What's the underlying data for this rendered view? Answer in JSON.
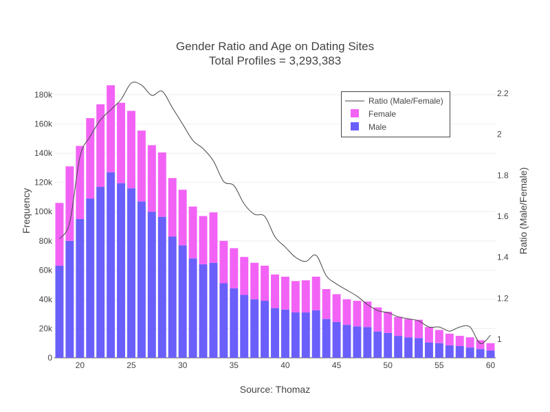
{
  "chart_data": {
    "type": "bar",
    "title": "Gender Ratio and Age on Dating Sites",
    "subtitle": "Total Profiles = 3,293,383",
    "xlabel": "Source: Thomaz",
    "ylabel": "Frequency",
    "y2label": "Ratio (Male/Female)",
    "barmode": "stack",
    "xlim": [
      17.5,
      60.5
    ],
    "ylim": [
      0,
      188000
    ],
    "y2lim": [
      0.91,
      2.25
    ],
    "x_ticks": [
      20,
      25,
      30,
      35,
      40,
      45,
      50,
      55,
      60
    ],
    "y_ticks": [
      0,
      20000,
      40000,
      60000,
      80000,
      100000,
      120000,
      140000,
      160000,
      180000
    ],
    "y_tick_labels": [
      "0",
      "20k",
      "40k",
      "60k",
      "80k",
      "100k",
      "120k",
      "140k",
      "160k",
      "180k"
    ],
    "y2_ticks": [
      1.0,
      1.2,
      1.4,
      1.6,
      1.8,
      2.0,
      2.2
    ],
    "y2_tick_labels": [
      "1",
      "1.2",
      "1.4",
      "1.6",
      "1.8",
      "2",
      "2.2"
    ],
    "grid": true,
    "legend_position": "top-right",
    "x": [
      18,
      19,
      20,
      21,
      22,
      23,
      24,
      25,
      26,
      27,
      28,
      29,
      30,
      31,
      32,
      33,
      34,
      35,
      36,
      37,
      38,
      39,
      40,
      41,
      42,
      43,
      44,
      45,
      46,
      47,
      48,
      49,
      50,
      51,
      52,
      53,
      54,
      55,
      56,
      57,
      58,
      59,
      60
    ],
    "series": [
      {
        "name": "Male",
        "color": "#6a5ffb",
        "values": [
          63000,
          80000,
          95000,
          109000,
          117000,
          127000,
          119500,
          116000,
          107000,
          100000,
          96500,
          83000,
          77000,
          68000,
          64000,
          65000,
          51000,
          47500,
          43000,
          40000,
          39000,
          34000,
          33000,
          31000,
          31000,
          32500,
          26500,
          24500,
          22500,
          21500,
          21000,
          18000,
          17000,
          15000,
          14000,
          13500,
          10500,
          10000,
          8500,
          8000,
          7000,
          6000,
          5000
        ]
      },
      {
        "name": "Female",
        "color": "#f263f5",
        "values": [
          43000,
          51000,
          50000,
          55000,
          56500,
          59500,
          55000,
          53000,
          48500,
          45500,
          44000,
          40000,
          38000,
          35500,
          33000,
          34500,
          29000,
          27500,
          26000,
          25000,
          24000,
          23000,
          22500,
          21500,
          22000,
          23000,
          20500,
          19000,
          17500,
          17500,
          17500,
          16500,
          14500,
          13000,
          12500,
          12500,
          10500,
          9000,
          8000,
          7000,
          7000,
          6000,
          5000
        ]
      },
      {
        "name": "Ratio (Male/Female)",
        "type": "line",
        "axis": "right",
        "color": "#444444",
        "values": [
          1.49,
          1.57,
          1.89,
          1.99,
          2.07,
          2.12,
          2.17,
          2.25,
          2.24,
          2.19,
          2.21,
          2.13,
          2.05,
          1.97,
          1.93,
          1.87,
          1.77,
          1.75,
          1.66,
          1.61,
          1.6,
          1.5,
          1.45,
          1.4,
          1.38,
          1.41,
          1.31,
          1.27,
          1.24,
          1.21,
          1.17,
          1.14,
          1.13,
          1.11,
          1.1,
          1.09,
          1.06,
          1.06,
          1.04,
          1.06,
          1.06,
          0.98,
          1.02
        ]
      }
    ]
  }
}
